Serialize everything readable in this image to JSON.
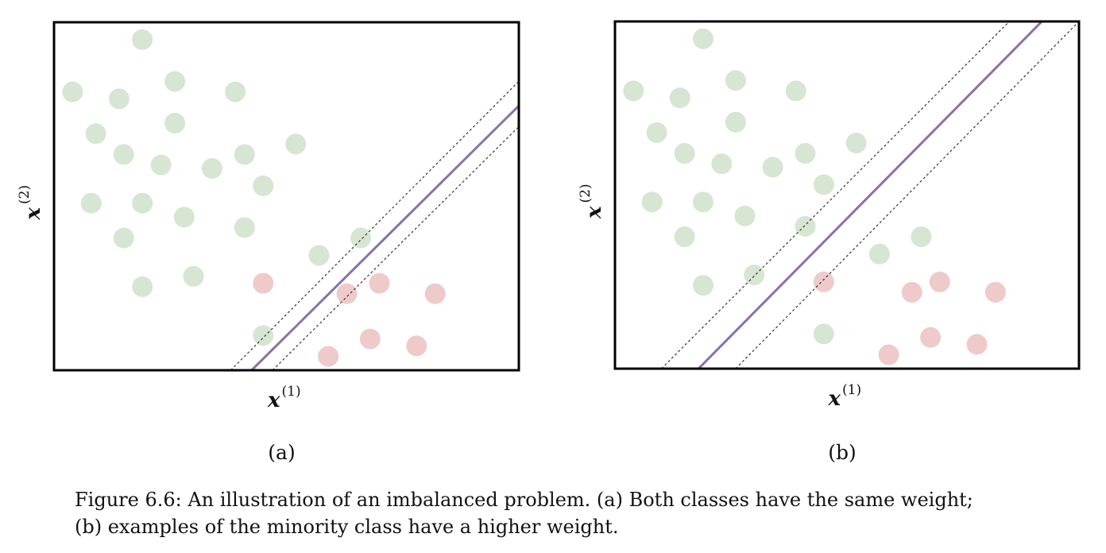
{
  "figure": {
    "caption_line1": "Figure 6.6: An illustration of an imbalanced problem. (a) Both classes have the same weight;",
    "caption_line2": "(b) examples of the minority class have a higher weight."
  },
  "colors": {
    "majority": "#d7e5d3",
    "minority": "#efcaca",
    "boundary": "#8a72a4",
    "margin": "#333333",
    "frame": "#000000"
  },
  "chart_data": [
    {
      "type": "scatter",
      "subplot_label": "(a)",
      "xlabel": "x",
      "xlabel_sup": "(1)",
      "ylabel": "x",
      "ylabel_sup": "(2)",
      "xlim": [
        0,
        100
      ],
      "ylim": [
        0,
        100
      ],
      "grid": false,
      "series": [
        {
          "class": "majority",
          "points": [
            [
              19,
              95
            ],
            [
              4,
              80
            ],
            [
              26,
              83
            ],
            [
              14,
              78
            ],
            [
              39,
              80
            ],
            [
              26,
              71
            ],
            [
              9,
              68
            ],
            [
              15,
              62
            ],
            [
              23,
              59
            ],
            [
              34,
              58
            ],
            [
              41,
              62
            ],
            [
              52,
              65
            ],
            [
              45,
              53
            ],
            [
              8,
              48
            ],
            [
              19,
              48
            ],
            [
              28,
              44
            ],
            [
              41,
              41
            ],
            [
              15,
              38
            ],
            [
              57,
              33
            ],
            [
              66,
              38
            ],
            [
              19,
              24
            ],
            [
              30,
              27
            ],
            [
              45,
              10
            ]
          ]
        },
        {
          "class": "minority",
          "points": [
            [
              45,
              25
            ],
            [
              63,
              22
            ],
            [
              70,
              25
            ],
            [
              82,
              22
            ],
            [
              59,
              4
            ],
            [
              68,
              9
            ],
            [
              78,
              7
            ]
          ]
        }
      ],
      "decision_boundary": [
        [
          42.5,
          0
        ],
        [
          100,
          76
        ]
      ],
      "margin_lines": [
        [
          [
            38,
            0
          ],
          [
            100,
            83
          ]
        ],
        [
          [
            47,
            0
          ],
          [
            100,
            70
          ]
        ]
      ]
    },
    {
      "type": "scatter",
      "subplot_label": "(b)",
      "xlabel": "x",
      "xlabel_sup": "(1)",
      "ylabel": "x",
      "ylabel_sup": "(2)",
      "xlim": [
        0,
        100
      ],
      "ylim": [
        0,
        100
      ],
      "grid": false,
      "series": [
        {
          "class": "majority",
          "points": [
            [
              19,
              95
            ],
            [
              4,
              80
            ],
            [
              26,
              83
            ],
            [
              14,
              78
            ],
            [
              39,
              80
            ],
            [
              26,
              71
            ],
            [
              9,
              68
            ],
            [
              15,
              62
            ],
            [
              23,
              59
            ],
            [
              34,
              58
            ],
            [
              41,
              62
            ],
            [
              52,
              65
            ],
            [
              45,
              53
            ],
            [
              8,
              48
            ],
            [
              19,
              48
            ],
            [
              28,
              44
            ],
            [
              41,
              41
            ],
            [
              15,
              38
            ],
            [
              57,
              33
            ],
            [
              66,
              38
            ],
            [
              19,
              24
            ],
            [
              30,
              27
            ],
            [
              45,
              10
            ]
          ]
        },
        {
          "class": "minority",
          "points": [
            [
              45,
              25
            ],
            [
              64,
              22
            ],
            [
              70,
              25
            ],
            [
              82,
              22
            ],
            [
              59,
              4
            ],
            [
              68,
              9
            ],
            [
              78,
              7
            ]
          ]
        }
      ],
      "decision_boundary": [
        [
          18,
          0
        ],
        [
          92,
          100
        ]
      ],
      "margin_lines": [
        [
          [
            10,
            0
          ],
          [
            85,
            100
          ]
        ],
        [
          [
            26,
            0
          ],
          [
            100,
            100
          ]
        ]
      ]
    }
  ]
}
